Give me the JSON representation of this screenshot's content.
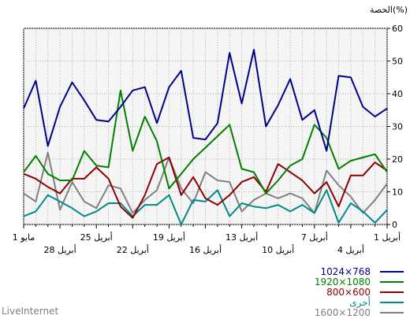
{
  "chart_data": {
    "type": "line",
    "ylabel": "الحصة(%)",
    "ylim": [
      0,
      60
    ],
    "y_ticks": [
      0,
      10,
      20,
      30,
      40,
      50,
      60
    ],
    "x_tick_labels_upper": [
      "1 أبريل",
      "7 أبريل",
      "13 أبريل",
      "19 أبريل",
      "25 أبريل",
      "1 مايو"
    ],
    "x_tick_labels_lower": [
      "4 أبريل",
      "10 أبريل",
      "16 أبريل",
      "22 أبريل",
      "28 أبريل"
    ],
    "x_days": [
      1,
      2,
      3,
      4,
      5,
      6,
      7,
      8,
      9,
      10,
      11,
      12,
      13,
      14,
      15,
      16,
      17,
      18,
      19,
      20,
      21,
      22,
      23,
      24,
      25,
      26,
      27,
      28,
      29,
      30,
      31
    ],
    "grid": true,
    "series": [
      {
        "name": "1024×768",
        "color": "#00008b",
        "values": [
          35.5,
          33,
          36,
          45,
          45.5,
          22.5,
          35,
          32,
          44.5,
          36.5,
          30,
          53.5,
          37,
          52.5,
          31,
          26,
          26.5,
          47,
          42,
          31,
          42,
          41,
          36,
          31.5,
          32,
          38,
          43.5,
          36,
          24,
          44,
          35.5
        ]
      },
      {
        "name": "1920×1080",
        "color": "#008000",
        "values": [
          16,
          21.5,
          20.5,
          19.5,
          17,
          26.5,
          30.5,
          20,
          18,
          13.5,
          9.5,
          16,
          17,
          30.5,
          27,
          23.5,
          20,
          15.5,
          11,
          25.5,
          33,
          22.5,
          41,
          17.5,
          18,
          22.5,
          13.5,
          13.5,
          15.5,
          21,
          16
        ]
      },
      {
        "name": "800×600",
        "color": "#8b0000",
        "values": [
          16.5,
          19,
          15,
          15,
          5.5,
          13,
          9.5,
          13.5,
          16,
          18.5,
          10,
          14.5,
          13,
          9,
          6,
          8,
          14.5,
          9,
          20.5,
          18.5,
          9,
          2,
          5.5,
          14,
          17.5,
          14,
          14,
          9.5,
          11.5,
          14,
          15.5
        ]
      },
      {
        "name": "أخرى",
        "color": "#008b8b",
        "values": [
          4.5,
          0.5,
          4,
          6.5,
          0.5,
          10.5,
          3.5,
          6,
          4,
          6,
          5,
          5.5,
          6.5,
          2.5,
          10.5,
          7,
          7.5,
          0,
          9,
          6,
          6,
          2.5,
          6.5,
          6.5,
          4,
          2.5,
          5,
          7,
          9,
          4,
          2.5
        ]
      },
      {
        "name": "1600×1200",
        "color": "#808080",
        "values": [
          12.5,
          7.5,
          3.5,
          8.5,
          12,
          16.5,
          3.5,
          8,
          9.5,
          8,
          9.5,
          7.5,
          4,
          13,
          13.5,
          16,
          6.5,
          11,
          20.5,
          10.5,
          7.5,
          3.5,
          11,
          12,
          5,
          7,
          13,
          4.5,
          22,
          7,
          9.5
        ]
      }
    ]
  },
  "watermark": "LiveInternet"
}
